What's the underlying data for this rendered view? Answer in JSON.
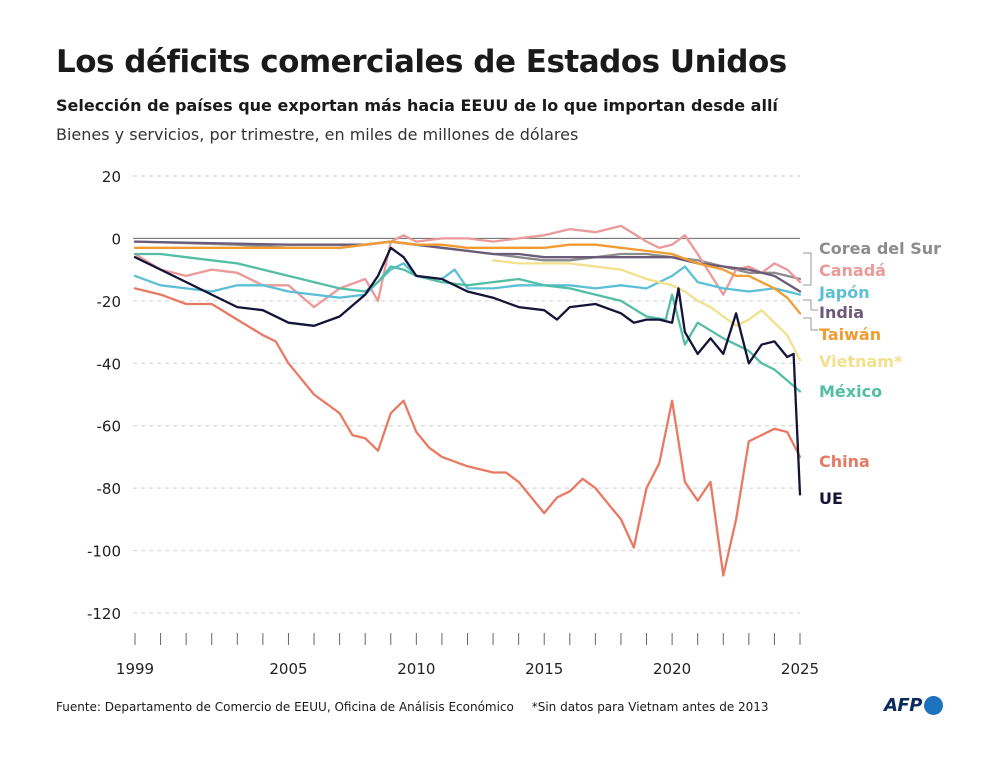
{
  "header": {
    "title": "Los déficits comerciales de Estados Unidos",
    "subtitle": "Selección de países que exportan más hacia EEUU de lo que importan desde allí",
    "subtitle2": "Bienes y servicios, por trimestre, en miles de millones de dólares"
  },
  "footer": {
    "source": "Fuente: Departamento de Comercio de EEUU, Oficina de Análisis Económico",
    "note": "*Sin datos para Vietnam antes de 2013"
  },
  "logo": {
    "text": "AFP"
  },
  "chart_data": {
    "type": "line",
    "x_unit": "year (quarterly)",
    "xlim": [
      1999,
      2025
    ],
    "ylim": [
      -125,
      22
    ],
    "yticks": [
      20,
      0,
      -20,
      -40,
      -60,
      -80,
      -100,
      -120
    ],
    "xtick_labels": [
      "1999",
      "2005",
      "2010",
      "2015",
      "2020",
      "2025"
    ],
    "grid": true,
    "legend": "right, labels at line ends",
    "series": [
      {
        "name": "Corea del Sur",
        "color": "#8c8c8c",
        "points": [
          [
            1999,
            -1
          ],
          [
            2001,
            -1.5
          ],
          [
            2003,
            -2
          ],
          [
            2005,
            -3
          ],
          [
            2007,
            -3
          ],
          [
            2008,
            -2
          ],
          [
            2009,
            -1
          ],
          [
            2010,
            -2
          ],
          [
            2011,
            -3
          ],
          [
            2012,
            -4
          ],
          [
            2013,
            -5
          ],
          [
            2014,
            -6
          ],
          [
            2015,
            -7
          ],
          [
            2016,
            -7
          ],
          [
            2017,
            -6
          ],
          [
            2018,
            -5
          ],
          [
            2019,
            -5
          ],
          [
            2020,
            -6
          ],
          [
            2021,
            -7
          ],
          [
            2022,
            -9
          ],
          [
            2023,
            -11
          ],
          [
            2024,
            -11
          ],
          [
            2025,
            -13
          ]
        ]
      },
      {
        "name": "Canadá",
        "color": "#eb9999",
        "points": [
          [
            1999,
            -5
          ],
          [
            2000,
            -10
          ],
          [
            2001,
            -12
          ],
          [
            2002,
            -10
          ],
          [
            2003,
            -11
          ],
          [
            2004,
            -15
          ],
          [
            2005,
            -15
          ],
          [
            2006,
            -22
          ],
          [
            2007,
            -16
          ],
          [
            2008,
            -13
          ],
          [
            2008.5,
            -20
          ],
          [
            2009,
            -1
          ],
          [
            2009.5,
            1
          ],
          [
            2010,
            -1
          ],
          [
            2011,
            0
          ],
          [
            2012,
            0
          ],
          [
            2013,
            -1
          ],
          [
            2014,
            0
          ],
          [
            2015,
            1
          ],
          [
            2016,
            3
          ],
          [
            2017,
            2
          ],
          [
            2018,
            4
          ],
          [
            2019,
            -1
          ],
          [
            2019.5,
            -3
          ],
          [
            2020,
            -2
          ],
          [
            2020.5,
            1
          ],
          [
            2021,
            -5
          ],
          [
            2022,
            -18
          ],
          [
            2022.5,
            -10
          ],
          [
            2023,
            -9
          ],
          [
            2023.5,
            -11
          ],
          [
            2024,
            -8
          ],
          [
            2024.5,
            -10
          ],
          [
            2025,
            -14
          ]
        ]
      },
      {
        "name": "Japón",
        "color": "#5bc0d6",
        "points": [
          [
            1999,
            -12
          ],
          [
            2000,
            -15
          ],
          [
            2001,
            -16
          ],
          [
            2002,
            -17
          ],
          [
            2003,
            -15
          ],
          [
            2004,
            -15
          ],
          [
            2005,
            -17
          ],
          [
            2006,
            -18
          ],
          [
            2007,
            -19
          ],
          [
            2008,
            -18
          ],
          [
            2009,
            -10
          ],
          [
            2009.5,
            -8
          ],
          [
            2010,
            -12
          ],
          [
            2011,
            -13
          ],
          [
            2011.5,
            -10
          ],
          [
            2012,
            -16
          ],
          [
            2013,
            -16
          ],
          [
            2014,
            -15
          ],
          [
            2015,
            -15
          ],
          [
            2016,
            -15
          ],
          [
            2017,
            -16
          ],
          [
            2018,
            -15
          ],
          [
            2019,
            -16
          ],
          [
            2020,
            -12
          ],
          [
            2020.5,
            -9
          ],
          [
            2021,
            -14
          ],
          [
            2022,
            -16
          ],
          [
            2023,
            -17
          ],
          [
            2024,
            -16
          ],
          [
            2025,
            -18
          ]
        ]
      },
      {
        "name": "India",
        "color": "#6b5b7a",
        "points": [
          [
            1999,
            -1
          ],
          [
            2002,
            -1.5
          ],
          [
            2005,
            -2
          ],
          [
            2008,
            -2
          ],
          [
            2009,
            -1
          ],
          [
            2010,
            -2
          ],
          [
            2011,
            -3
          ],
          [
            2012,
            -4
          ],
          [
            2013,
            -5
          ],
          [
            2014,
            -5
          ],
          [
            2015,
            -6
          ],
          [
            2016,
            -6
          ],
          [
            2017,
            -6
          ],
          [
            2018,
            -6
          ],
          [
            2019,
            -6
          ],
          [
            2020,
            -6
          ],
          [
            2021,
            -8
          ],
          [
            2022,
            -9
          ],
          [
            2023,
            -10
          ],
          [
            2024,
            -12
          ],
          [
            2025,
            -17
          ]
        ]
      },
      {
        "name": "Taiwán",
        "color": "#f29b30",
        "points": [
          [
            1999,
            -3
          ],
          [
            2001,
            -3
          ],
          [
            2003,
            -3
          ],
          [
            2005,
            -3
          ],
          [
            2007,
            -3
          ],
          [
            2008,
            -2
          ],
          [
            2009,
            -1
          ],
          [
            2010,
            -2
          ],
          [
            2011,
            -2
          ],
          [
            2012,
            -3
          ],
          [
            2013,
            -3
          ],
          [
            2014,
            -3
          ],
          [
            2015,
            -3
          ],
          [
            2016,
            -2
          ],
          [
            2017,
            -2
          ],
          [
            2018,
            -3
          ],
          [
            2019,
            -4
          ],
          [
            2020,
            -5
          ],
          [
            2021,
            -8
          ],
          [
            2022,
            -10
          ],
          [
            2022.5,
            -12
          ],
          [
            2023,
            -12
          ],
          [
            2023.5,
            -14
          ],
          [
            2024,
            -16
          ],
          [
            2024.5,
            -19
          ],
          [
            2025,
            -24
          ]
        ]
      },
      {
        "name": "Vietnam*",
        "color": "#f2e08c",
        "points": [
          [
            2013,
            -7
          ],
          [
            2014,
            -8
          ],
          [
            2015,
            -8
          ],
          [
            2016,
            -8
          ],
          [
            2017,
            -9
          ],
          [
            2018,
            -10
          ],
          [
            2019,
            -13
          ],
          [
            2020,
            -15
          ],
          [
            2020.5,
            -17
          ],
          [
            2021,
            -20
          ],
          [
            2021.5,
            -22
          ],
          [
            2022,
            -25
          ],
          [
            2022.5,
            -28
          ],
          [
            2023,
            -26
          ],
          [
            2023.5,
            -23
          ],
          [
            2024,
            -27
          ],
          [
            2024.5,
            -31
          ],
          [
            2025,
            -39
          ]
        ]
      },
      {
        "name": "México",
        "color": "#52bfa5",
        "points": [
          [
            1999,
            -5
          ],
          [
            2000,
            -5
          ],
          [
            2001,
            -6
          ],
          [
            2002,
            -7
          ],
          [
            2003,
            -8
          ],
          [
            2004,
            -10
          ],
          [
            2005,
            -12
          ],
          [
            2006,
            -14
          ],
          [
            2007,
            -16
          ],
          [
            2008,
            -17
          ],
          [
            2008.5,
            -14
          ],
          [
            2009,
            -9
          ],
          [
            2009.5,
            -10
          ],
          [
            2010,
            -12
          ],
          [
            2011,
            -14
          ],
          [
            2012,
            -15
          ],
          [
            2013,
            -14
          ],
          [
            2014,
            -13
          ],
          [
            2015,
            -15
          ],
          [
            2016,
            -16
          ],
          [
            2017,
            -18
          ],
          [
            2018,
            -20
          ],
          [
            2019,
            -25
          ],
          [
            2019.75,
            -26
          ],
          [
            2020,
            -18
          ],
          [
            2020.5,
            -34
          ],
          [
            2021,
            -27
          ],
          [
            2022,
            -32
          ],
          [
            2023,
            -36
          ],
          [
            2023.5,
            -40
          ],
          [
            2024,
            -42
          ],
          [
            2025,
            -49
          ]
        ]
      },
      {
        "name": "China",
        "color": "#e87a64",
        "points": [
          [
            1999,
            -16
          ],
          [
            2000,
            -18
          ],
          [
            2001,
            -21
          ],
          [
            2002,
            -21
          ],
          [
            2003,
            -26
          ],
          [
            2004,
            -31
          ],
          [
            2004.5,
            -33
          ],
          [
            2005,
            -40
          ],
          [
            2006,
            -50
          ],
          [
            2007,
            -56
          ],
          [
            2007.5,
            -63
          ],
          [
            2008,
            -64
          ],
          [
            2008.5,
            -68
          ],
          [
            2009,
            -56
          ],
          [
            2009.5,
            -52
          ],
          [
            2010,
            -62
          ],
          [
            2010.5,
            -67
          ],
          [
            2011,
            -70
          ],
          [
            2012,
            -73
          ],
          [
            2013,
            -75
          ],
          [
            2013.5,
            -75
          ],
          [
            2014,
            -78
          ],
          [
            2014.5,
            -83
          ],
          [
            2015,
            -88
          ],
          [
            2015.5,
            -83
          ],
          [
            2016,
            -81
          ],
          [
            2016.5,
            -77
          ],
          [
            2017,
            -80
          ],
          [
            2017.5,
            -85
          ],
          [
            2018,
            -90
          ],
          [
            2018.5,
            -99
          ],
          [
            2019,
            -80
          ],
          [
            2019.5,
            -72
          ],
          [
            2020,
            -52
          ],
          [
            2020.5,
            -78
          ],
          [
            2021,
            -84
          ],
          [
            2021.5,
            -78
          ],
          [
            2022,
            -108
          ],
          [
            2022.5,
            -90
          ],
          [
            2023,
            -65
          ],
          [
            2023.5,
            -63
          ],
          [
            2024,
            -61
          ],
          [
            2024.5,
            -62
          ],
          [
            2025,
            -70
          ]
        ]
      },
      {
        "name": "UE",
        "color": "#141438",
        "points": [
          [
            1999,
            -6
          ],
          [
            2000,
            -10
          ],
          [
            2001,
            -14
          ],
          [
            2002,
            -18
          ],
          [
            2003,
            -22
          ],
          [
            2004,
            -23
          ],
          [
            2005,
            -27
          ],
          [
            2006,
            -28
          ],
          [
            2007,
            -25
          ],
          [
            2008,
            -18
          ],
          [
            2008.5,
            -12
          ],
          [
            2009,
            -3
          ],
          [
            2009.5,
            -6
          ],
          [
            2010,
            -12
          ],
          [
            2011,
            -13
          ],
          [
            2012,
            -17
          ],
          [
            2013,
            -19
          ],
          [
            2014,
            -22
          ],
          [
            2015,
            -23
          ],
          [
            2015.5,
            -26
          ],
          [
            2016,
            -22
          ],
          [
            2017,
            -21
          ],
          [
            2018,
            -24
          ],
          [
            2018.5,
            -27
          ],
          [
            2019,
            -26
          ],
          [
            2019.5,
            -26
          ],
          [
            2020,
            -27
          ],
          [
            2020.25,
            -16
          ],
          [
            2020.5,
            -30
          ],
          [
            2021,
            -37
          ],
          [
            2021.5,
            -32
          ],
          [
            2022,
            -37
          ],
          [
            2022.5,
            -24
          ],
          [
            2023,
            -40
          ],
          [
            2023.5,
            -34
          ],
          [
            2024,
            -33
          ],
          [
            2024.5,
            -38
          ],
          [
            2024.75,
            -37
          ],
          [
            2025,
            -82
          ]
        ]
      }
    ],
    "end_labels": [
      {
        "name": "Corea del Sur",
        "text": "Corea del Sur",
        "color": "#8c8c8c"
      },
      {
        "name": "Canadá",
        "text": "Canadá",
        "color": "#eb9999"
      },
      {
        "name": "Japón",
        "text": "Japón",
        "color": "#5bc0d6"
      },
      {
        "name": "India",
        "text": "India",
        "color": "#6b5b7a"
      },
      {
        "name": "Taiwán",
        "text": "Taiwán",
        "color": "#f29b30"
      },
      {
        "name": "Vietnam*",
        "text": "Vietnam*",
        "color": "#f2e08c"
      },
      {
        "name": "México",
        "text": "México",
        "color": "#52bfa5"
      },
      {
        "name": "China",
        "text": "China",
        "color": "#e87a64"
      },
      {
        "name": "UE",
        "text": "UE",
        "color": "#141438"
      }
    ]
  }
}
